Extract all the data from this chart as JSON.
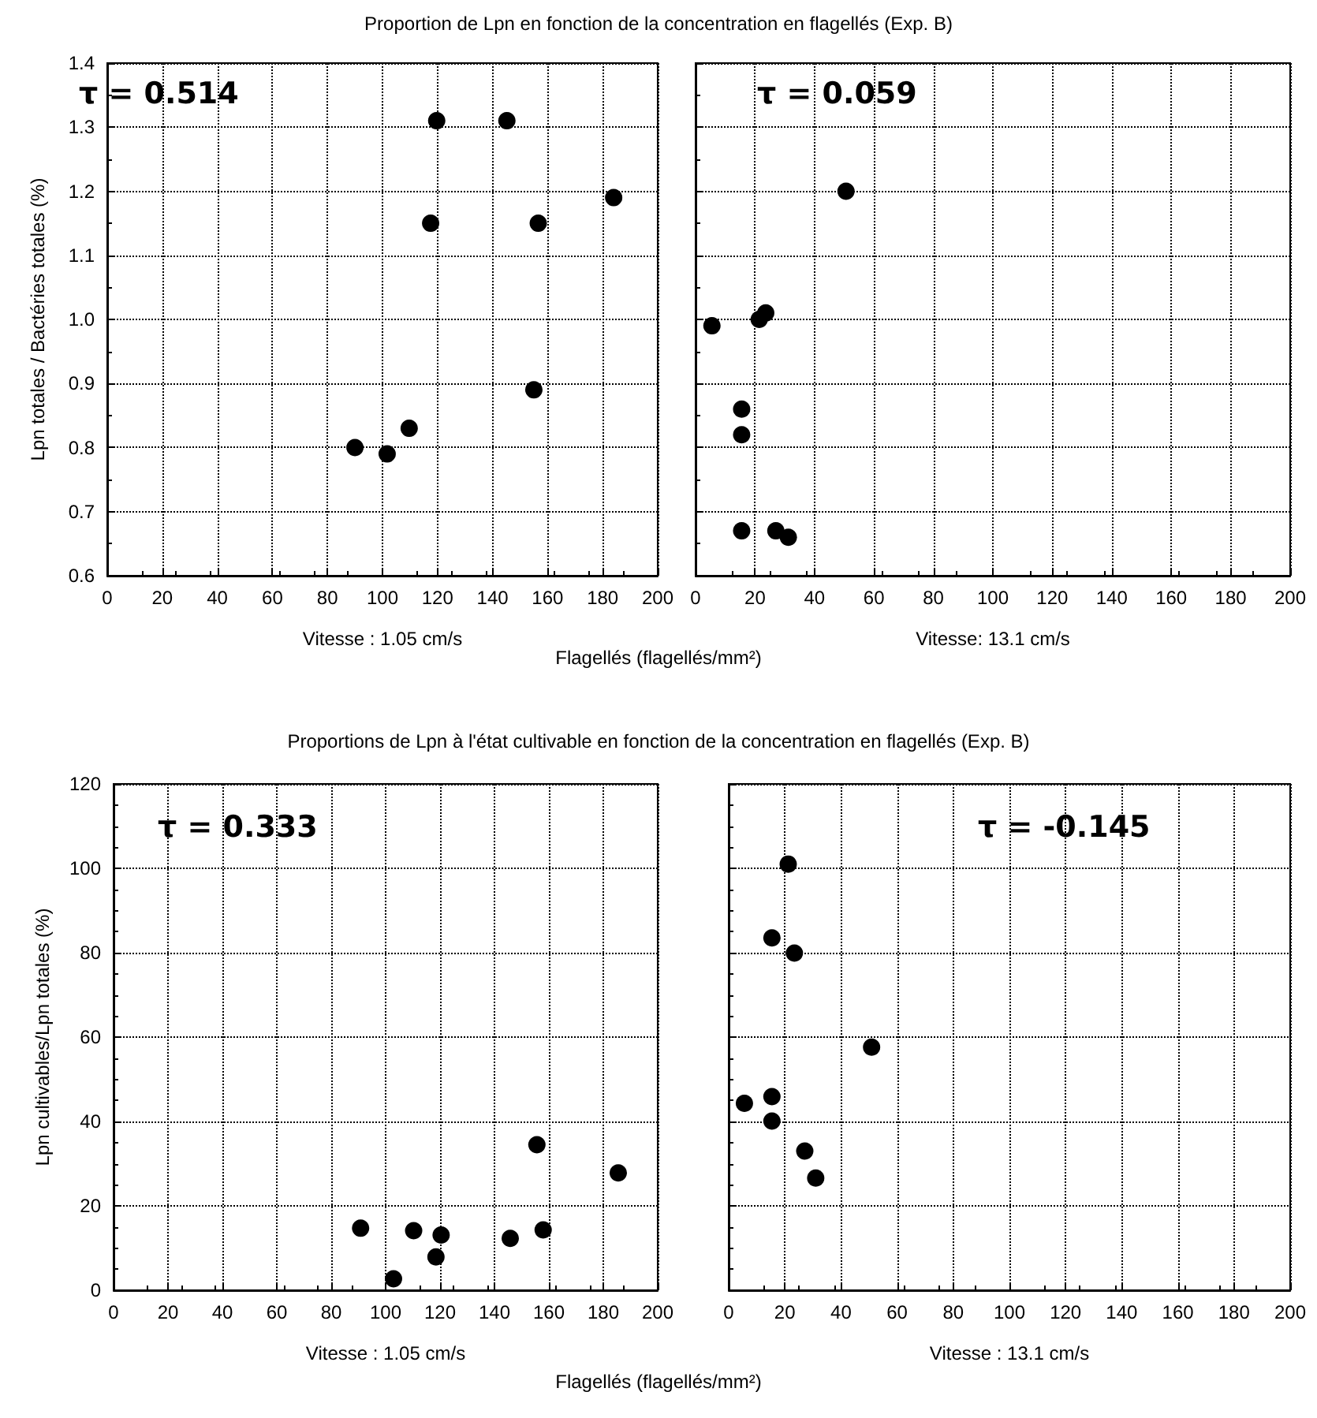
{
  "chart_data": [
    {
      "type": "scatter",
      "title": "Proportion de Lpn en fonction de la concentration en flagellés (Exp. B)",
      "xlabel": "Vitesse : 1.05 cm/s",
      "ylabel": "Lpn totales / Bactéries totales (%)",
      "annotations": [
        "τ = 0.514",
        "Flagellés (flagellés/mm²)"
      ],
      "x": [
        90,
        101.7,
        109.7,
        117.5,
        119.7,
        145.2,
        156.6,
        155,
        184
      ],
      "values": [
        0.8,
        0.79,
        0.83,
        1.15,
        1.31,
        1.31,
        1.15,
        0.89,
        1.19
      ],
      "color": "#000000",
      "xlim": [
        0,
        200
      ],
      "xticks": [
        0,
        20,
        40,
        60,
        80,
        100,
        120,
        140,
        160,
        180,
        200
      ],
      "ylim": [
        0.6,
        1.4
      ],
      "yticks": [
        0.6,
        0.7,
        0.8,
        0.9,
        {
          "value": 1,
          "label": "1.0"
        },
        1.1,
        1.2,
        1.3,
        1.4
      ],
      "grid": true,
      "marker": "circle"
    },
    {
      "type": "scatter",
      "xlabel": "Vitesse: 13.1 cm/s",
      "annotations": [
        "τ = 0.059"
      ],
      "x": [
        50.6,
        5.5,
        21.4,
        23.6,
        15.5,
        15.5,
        15.5,
        27,
        31.2
      ],
      "values": [
        1.2,
        0.99,
        1.0,
        1.01,
        0.86,
        0.82,
        0.67,
        0.67,
        0.66
      ],
      "color": "#000000",
      "xlim": [
        0,
        200
      ],
      "xticks": [
        0,
        20,
        40,
        60,
        80,
        100,
        120,
        140,
        160,
        180,
        200
      ],
      "ylim": [
        0.6,
        1.4
      ],
      "yticks": [
        0.6,
        0.7,
        0.8,
        0.9,
        1,
        1.1,
        1.2,
        1.3,
        1.4
      ],
      "grid": true,
      "marker": "circle",
      "tick_labels": "x"
    },
    {
      "type": "scatter",
      "title": "Proportions de Lpn à l'état cultivable en fonction de la concentration en flagellés (Exp. B)",
      "xlabel": "Vitesse : 1.05 cm/s",
      "ylabel": "Lpn cultivables/Lpn totales (%)",
      "annotations": [
        "τ = 0.333",
        "Flagellés (flagellés/mm²)"
      ],
      "x": [
        90.8,
        102.9,
        110.3,
        120.4,
        118.5,
        145.8,
        155.6,
        157.9,
        185.5
      ],
      "values": [
        14.7,
        2.7,
        14.1,
        13.1,
        7.9,
        12.3,
        34.5,
        14.3,
        27.8
      ],
      "color": "#000000",
      "xlim": [
        0,
        200
      ],
      "xticks": [
        0,
        20,
        40,
        60,
        80,
        100,
        120,
        140,
        160,
        180,
        200
      ],
      "ylim": [
        0,
        120
      ],
      "yticks": [
        0,
        20,
        40,
        60,
        80,
        100,
        120
      ],
      "grid": true,
      "marker": "circle"
    },
    {
      "type": "scatter",
      "xlabel": "Vitesse : 13.1 cm/s",
      "annotations": [
        "τ = -0.145"
      ],
      "x": [
        21.2,
        15.4,
        23.4,
        50.9,
        5.6,
        15.4,
        15.4,
        27.1,
        31
      ],
      "values": [
        101,
        83.5,
        79.9,
        57.6,
        44.3,
        45.9,
        40.1,
        33,
        26.6
      ],
      "color": "#000000",
      "xlim": [
        0,
        200
      ],
      "xticks": [
        0,
        20,
        40,
        60,
        80,
        100,
        120,
        140,
        160,
        180,
        200
      ],
      "ylim": [
        0,
        120
      ],
      "yticks": [
        0,
        20,
        40,
        60,
        80,
        100,
        120
      ],
      "grid": true,
      "marker": "circle",
      "tick_labels": "x"
    }
  ]
}
